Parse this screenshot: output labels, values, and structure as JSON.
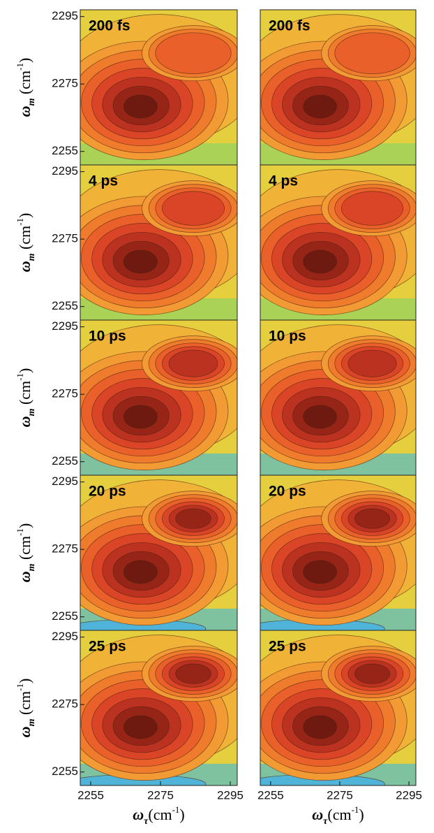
{
  "chart_data": [
    {
      "type": "contour",
      "title": "200 fs",
      "ylim": [
        2251,
        2297
      ],
      "yticks": [
        2255,
        2275,
        2295
      ],
      "ylabel": [
        "ω",
        "m",
        " (cm",
        "-1",
        ")"
      ]
    },
    {
      "type": "contour",
      "title": "200 fs"
    },
    {
      "type": "contour",
      "title": "4 ps",
      "ylim": [
        2251,
        2297
      ],
      "yticks": [
        2255,
        2275,
        2295
      ],
      "ylabel": [
        "ω",
        "m",
        " (cm",
        "-1",
        ")"
      ]
    },
    {
      "type": "contour",
      "title": "4 ps"
    },
    {
      "type": "contour",
      "title": "10 ps",
      "ylim": [
        2251,
        2297
      ],
      "yticks": [
        2255,
        2275,
        2295
      ],
      "ylabel": [
        "ω",
        "m",
        " (cm",
        "-1",
        ")"
      ]
    },
    {
      "type": "contour",
      "title": "10 ps"
    },
    {
      "type": "contour",
      "title": "20 ps",
      "ylim": [
        2251,
        2297
      ],
      "yticks": [
        2255,
        2275,
        2295
      ],
      "ylabel": [
        "ω",
        "m",
        " (cm",
        "-1",
        ")"
      ]
    },
    {
      "type": "contour",
      "title": "20 ps"
    },
    {
      "type": "contour",
      "title": "25 ps",
      "ylim": [
        2251,
        2297
      ],
      "yticks": [
        2255,
        2275,
        2295
      ],
      "ylabel": [
        "ω",
        "m",
        " (cm",
        "-1",
        ")"
      ],
      "xlim": [
        2252,
        2297
      ],
      "xticks": [
        2255,
        2275,
        2295
      ],
      "xlabel": [
        "ω",
        "τ",
        "(cm",
        "-1",
        ")"
      ]
    },
    {
      "type": "contour",
      "title": "25 ps",
      "xlim": [
        2252,
        2297
      ],
      "xticks": [
        2255,
        2275,
        2295
      ],
      "xlabel": [
        "ω",
        "τ",
        "(cm",
        "-1",
        ")"
      ]
    }
  ]
}
